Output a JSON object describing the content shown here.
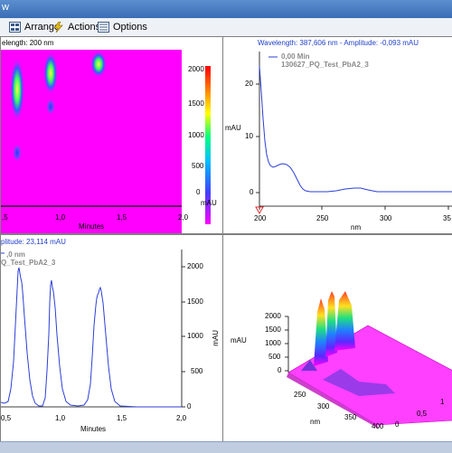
{
  "window": {
    "title_fragment": "w"
  },
  "toolbar": {
    "arrange_label": "Arrange",
    "actions_label": "Actions",
    "options_label": "Options",
    "arrange_icon": "arrange-icon",
    "actions_icon": "lightning-icon",
    "options_icon": "options-icon"
  },
  "panes": {
    "contour": {
      "header": "elength:  200 nm",
      "colorbar_ticks": [
        "2000",
        "1500",
        "1000",
        "500",
        "0"
      ],
      "colorbar_unit": "mAU",
      "x_ticks": [
        ",5",
        "1,0",
        "1,5",
        "2,0"
      ],
      "x_label": "Minutes",
      "colors": {
        "background": "#ff00ff"
      }
    },
    "spectrum": {
      "header": "Wavelength:  387,606 nm - Amplitude:  -0,093 mAU",
      "legend_time": "0,00 Min",
      "legend_sample": "130627_PQ_Test_PbA2_3",
      "y_label": "mAU",
      "y_ticks": [
        "20",
        "10",
        "0"
      ],
      "x_ticks": [
        "200",
        "250",
        "300",
        "35"
      ],
      "x_label": "nm",
      "colors": {
        "line": "#2b3fd6"
      }
    },
    "chromatogram": {
      "header": "plitude:  23,114 mAU",
      "legend_wavelength": ",0 nm",
      "legend_sample": "Q_Test_PbA2_3",
      "y_label": "mAU",
      "y_ticks": [
        "2000",
        "1500",
        "1000",
        "500",
        "0"
      ],
      "x_ticks": [
        "0,5",
        "1,0",
        "1,5",
        "2,0"
      ],
      "x_label": "Minutes",
      "colors": {
        "line": "#2b3fd6"
      }
    },
    "surface3d": {
      "z_label": "mAU",
      "z_ticks": [
        "2000",
        "1500",
        "1000",
        "500",
        "0"
      ],
      "nm_ticks": [
        "250",
        "300",
        "350",
        "400"
      ],
      "nm_label": "nm",
      "time_ticks": [
        "0",
        "0,5",
        "1"
      ]
    }
  }
}
